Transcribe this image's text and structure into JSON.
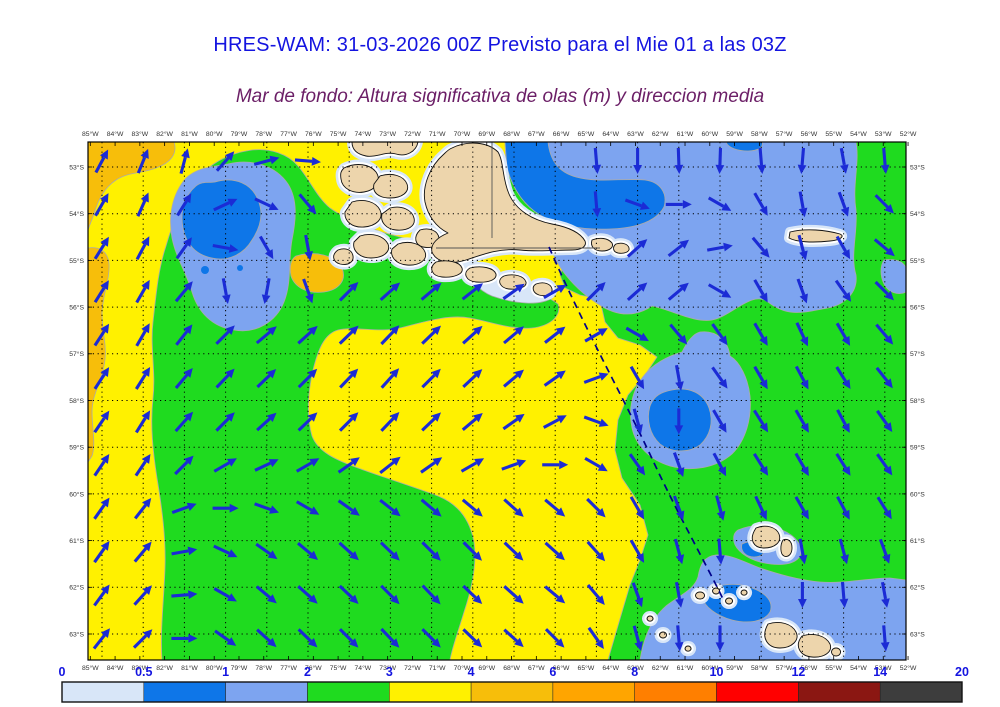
{
  "header": {
    "title": "HRES-WAM: 31-03-2026 00Z Previsto para el Mie 01 a las 03Z",
    "title_color": "#1414E0",
    "subtitle": "Mar de fondo: Altura significativa de olas (m) y direccion media",
    "subtitle_color": "#6B1E66"
  },
  "map": {
    "lon_labels": [
      "85°W",
      "84°W",
      "83°W",
      "82°W",
      "81°W",
      "80°W",
      "79°W",
      "78°W",
      "77°W",
      "76°W",
      "75°W",
      "74°W",
      "73°W",
      "72°W",
      "71°W",
      "70°W",
      "69°W",
      "68°W",
      "67°W",
      "66°W",
      "65°W",
      "64°W",
      "63°W",
      "62°W",
      "61°W",
      "60°W",
      "59°W",
      "58°W",
      "57°W",
      "56°W",
      "55°W",
      "54°W",
      "53°W",
      "52°W"
    ],
    "lat_labels": [
      "53°S",
      "54°S",
      "55°S",
      "56°S",
      "57°S",
      "58°S",
      "59°S",
      "60°S",
      "61°S",
      "62°S",
      "63°S"
    ],
    "palette": {
      "land": "#EDD5AC",
      "coastline": "#111111",
      "contour_line": "#ABABAB",
      "border_line": "#555555",
      "sea_0_05": "#D8E6F8",
      "sea_05_1": "#0E76E8",
      "sea_1_2": "#7DA4F0",
      "sea_2_3": "#1FDB1F",
      "sea_3_4": "#FFF100",
      "sea_4_6": "#F7BE0A",
      "arrow": "#1B2BD5",
      "route": "#00008B",
      "graticule": "#000000",
      "axis_label": "#333333"
    },
    "arrows": {
      "angles_deg": [
        [
          62,
          68,
          75,
          48,
          15,
          -5,
          null,
          null,
          null,
          null,
          null,
          null,
          -85,
          -90,
          -88,
          -92,
          -85,
          -95,
          -80,
          -85
        ],
        [
          60,
          66,
          58,
          25,
          -25,
          -50,
          null,
          null,
          null,
          null,
          null,
          null,
          -85,
          -20,
          0,
          -30,
          -60,
          -80,
          -70,
          -45
        ],
        [
          58,
          62,
          55,
          -10,
          -60,
          -80,
          null,
          null,
          null,
          null,
          null,
          null,
          null,
          42,
          38,
          10,
          -50,
          -75,
          -60,
          -40
        ],
        [
          58,
          60,
          50,
          -80,
          -100,
          -70,
          45,
          42,
          40,
          38,
          35,
          30,
          45,
          42,
          40,
          -30,
          -60,
          -70,
          -55,
          -45
        ],
        [
          57,
          60,
          52,
          45,
          40,
          42,
          44,
          46,
          44,
          42,
          40,
          38,
          30,
          -30,
          -50,
          -55,
          -60,
          -65,
          -60,
          -50
        ],
        [
          57,
          58,
          50,
          46,
          44,
          45,
          46,
          48,
          45,
          43,
          40,
          35,
          20,
          -60,
          -80,
          -55,
          -60,
          -62,
          -58,
          -52
        ],
        [
          56,
          58,
          48,
          45,
          42,
          44,
          45,
          46,
          44,
          40,
          35,
          28,
          -20,
          -75,
          -90,
          -60,
          -58,
          -60,
          -62,
          -55
        ],
        [
          56,
          56,
          45,
          30,
          25,
          30,
          35,
          38,
          35,
          30,
          20,
          0,
          -30,
          -55,
          -70,
          -62,
          -58,
          -60,
          -58,
          -55
        ],
        [
          55,
          52,
          20,
          0,
          -20,
          -30,
          -35,
          -38,
          -40,
          -40,
          -42,
          -40,
          -45,
          -60,
          -70,
          -75,
          -65,
          -60,
          -62,
          -58
        ],
        [
          55,
          50,
          10,
          -25,
          -35,
          -40,
          -42,
          -44,
          -45,
          -45,
          -44,
          -42,
          -48,
          -60,
          -75,
          -85,
          null,
          -80,
          -75,
          -70
        ],
        [
          54,
          48,
          5,
          -30,
          -40,
          -42,
          -44,
          -45,
          -46,
          -44,
          -42,
          -40,
          -50,
          -70,
          -80,
          null,
          null,
          -90,
          -85,
          -80
        ],
        [
          52,
          45,
          0,
          -35,
          -42,
          -44,
          -45,
          -46,
          -45,
          -44,
          -42,
          -45,
          -55,
          -75,
          -85,
          -90,
          null,
          null,
          null,
          -85
        ]
      ]
    },
    "route_line": {
      "style": "dashed"
    }
  },
  "colorbar": {
    "ticks": [
      "0",
      "0.5",
      "1",
      "2",
      "3",
      "4",
      "6",
      "8",
      "10",
      "12",
      "14",
      "20"
    ],
    "colors": [
      "#D8E6F8",
      "#0E76E8",
      "#7DA4F0",
      "#1FDB1F",
      "#FFF100",
      "#F7BE0A",
      "#FFA500",
      "#FF7F00",
      "#FF0000",
      "#8B1712",
      "#3D3D3D"
    ],
    "label_color": "#1414E0"
  }
}
